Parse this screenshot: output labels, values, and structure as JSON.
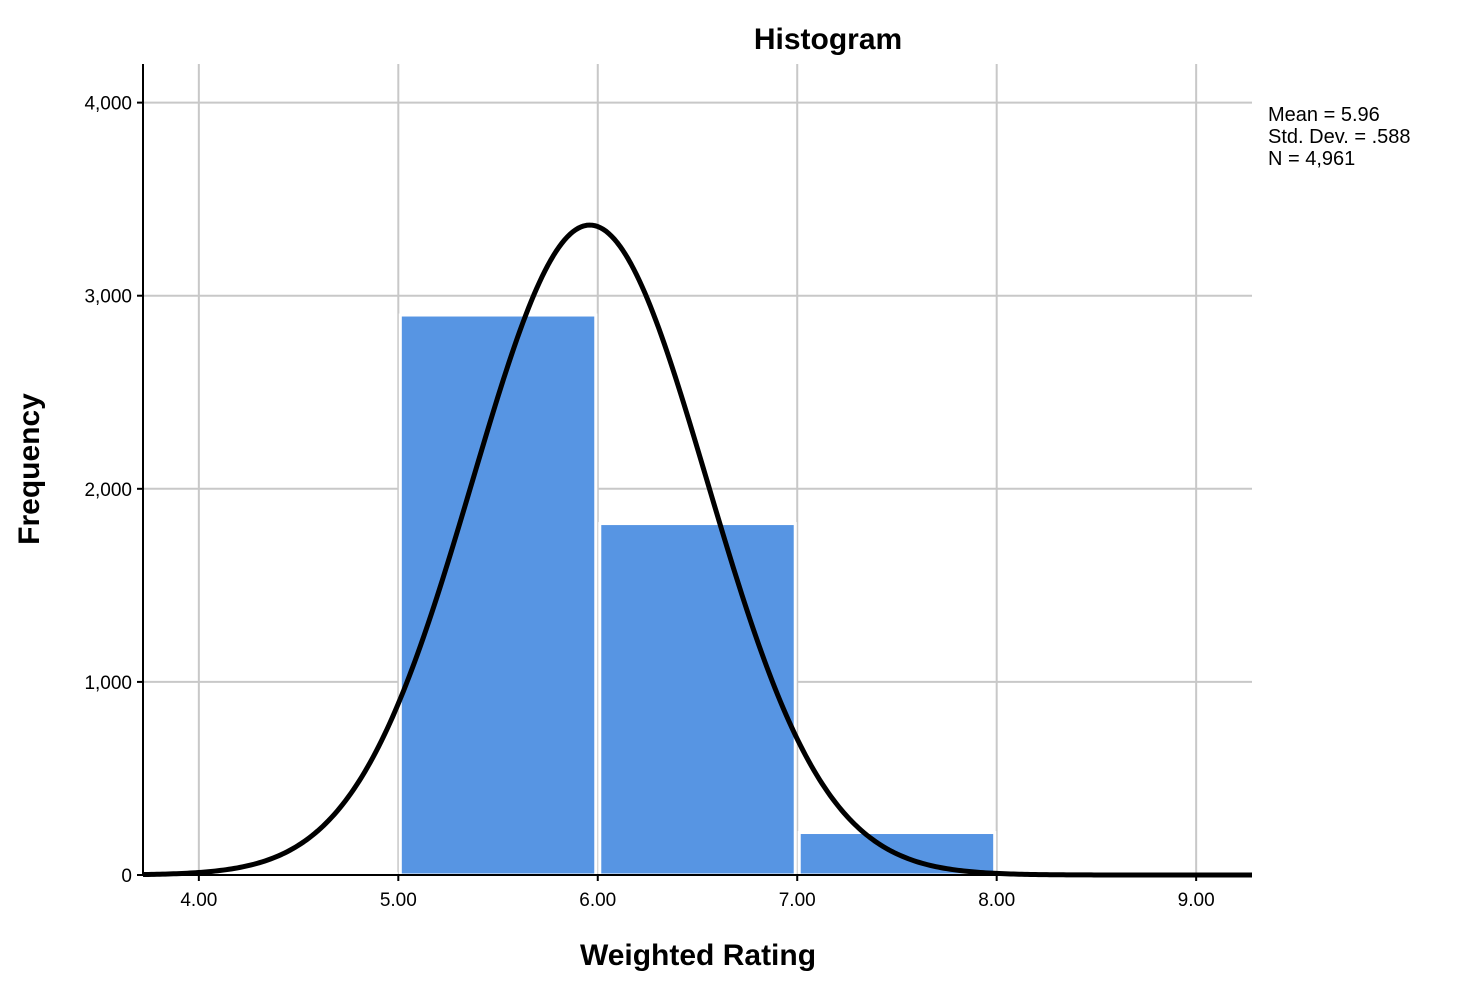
{
  "chart_data": {
    "type": "bar",
    "title": "Histogram",
    "xlabel": "Weighted Rating",
    "ylabel": "Frequency",
    "xlim": [
      3.72,
      9.28
    ],
    "ylim": [
      0,
      4200
    ],
    "x_ticks": [
      {
        "value": 4,
        "label": "4.00"
      },
      {
        "value": 5,
        "label": "5.00"
      },
      {
        "value": 6,
        "label": "6.00"
      },
      {
        "value": 7,
        "label": "7.00"
      },
      {
        "value": 8,
        "label": "8.00"
      },
      {
        "value": 9,
        "label": "9.00"
      }
    ],
    "y_ticks": [
      {
        "value": 0,
        "label": "0"
      },
      {
        "value": 1000,
        "label": "1,000"
      },
      {
        "value": 2000,
        "label": "2,000"
      },
      {
        "value": 3000,
        "label": "3,000"
      },
      {
        "value": 4000,
        "label": "4,000"
      }
    ],
    "bins": [
      {
        "x0": 4,
        "x1": 5,
        "value": 8
      },
      {
        "x0": 5,
        "x1": 6,
        "value": 2900
      },
      {
        "x0": 6,
        "x1": 7,
        "value": 1820
      },
      {
        "x0": 7,
        "x1": 8,
        "value": 220
      }
    ],
    "normal_curve": {
      "mean": 5.96,
      "sd": 0.588,
      "n": 4961,
      "bin_width": 1
    },
    "grid": true,
    "bar_color": "#5795e3",
    "bar_edge_color": "#ffffff",
    "curve_color": "#000000",
    "stats": [
      "Mean = 5.96",
      "Std. Dev. = .588",
      "N = 4,961"
    ],
    "stats_position": "top-right"
  }
}
